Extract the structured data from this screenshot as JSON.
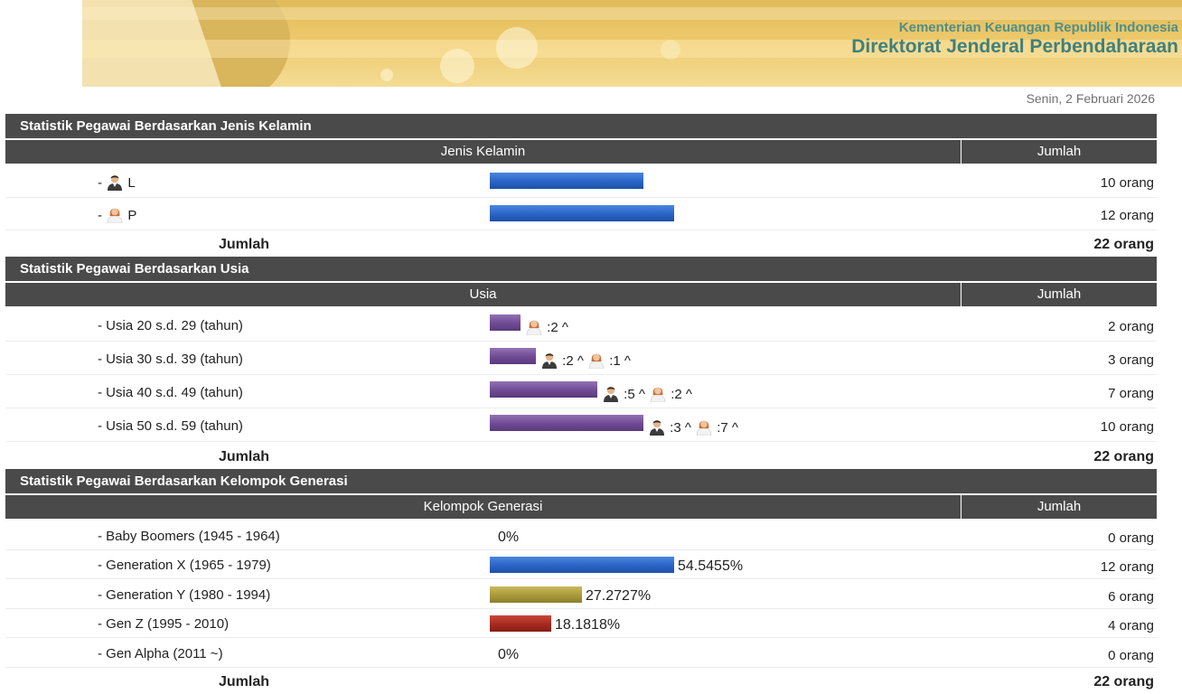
{
  "header": {
    "ministry": "Kementerian Keuangan Republik Indonesia",
    "directorate": "Direktorat Jenderal Perbendaharaan",
    "date": "Senin, 2 Februari 2026"
  },
  "gender": {
    "title": "Statistik Pegawai Berdasarkan Jenis Kelamin",
    "col1": "Jenis Kelamin",
    "col2": "Jumlah",
    "rows": [
      {
        "prefix": "-",
        "icon": "male-icon",
        "label": "L",
        "count": "10 orang",
        "value": 10,
        "color": "#2a64c5"
      },
      {
        "prefix": "-",
        "icon": "female-icon",
        "label": "P",
        "count": "12 orang",
        "value": 12,
        "color": "#2a64c5"
      }
    ],
    "total_label": "Jumlah",
    "total_value": "22 orang"
  },
  "age": {
    "title": "Statistik Pegawai Berdasarkan Usia",
    "col1": "Usia",
    "col2": "Jumlah",
    "rows": [
      {
        "label": "- Usia 20 s.d. 29 (tahun)",
        "value": 2,
        "count": "2 orang",
        "male": null,
        "female": ":2 ^"
      },
      {
        "label": "- Usia 30 s.d. 39 (tahun)",
        "value": 3,
        "count": "3 orang",
        "male": ":2 ^",
        "female": ":1 ^"
      },
      {
        "label": "- Usia 40 s.d. 49 (tahun)",
        "value": 7,
        "count": "7 orang",
        "male": ":5 ^",
        "female": ":2 ^"
      },
      {
        "label": "- Usia 50 s.d. 59 (tahun)",
        "value": 10,
        "count": "10 orang",
        "male": ":3 ^",
        "female": ":7 ^"
      }
    ],
    "total_label": "Jumlah",
    "total_value": "22 orang"
  },
  "generation": {
    "title": "Statistik Pegawai Berdasarkan Kelompok Generasi",
    "col1": "Kelompok Generasi",
    "col2": "Jumlah",
    "rows": [
      {
        "label": "- Baby Boomers (1945 - 1964)",
        "percent": "0%",
        "fraction": 0,
        "count": "0 orang",
        "color": "blue"
      },
      {
        "label": "- Generation X (1965 - 1979)",
        "percent": "54.5455%",
        "fraction": 0.545455,
        "count": "12 orang",
        "color": "blue"
      },
      {
        "label": "- Generation Y (1980 - 1994)",
        "percent": "27.2727%",
        "fraction": 0.272727,
        "count": "6 orang",
        "color": "olive"
      },
      {
        "label": "- Gen Z (1995 - 2010)",
        "percent": "18.1818%",
        "fraction": 0.181818,
        "count": "4 orang",
        "color": "red"
      },
      {
        "label": "- Gen Alpha (2011 ~)",
        "percent": "0%",
        "fraction": 0,
        "count": "0 orang",
        "color": "blue"
      }
    ],
    "total_label": "Jumlah",
    "total_value": "22 orang"
  }
}
